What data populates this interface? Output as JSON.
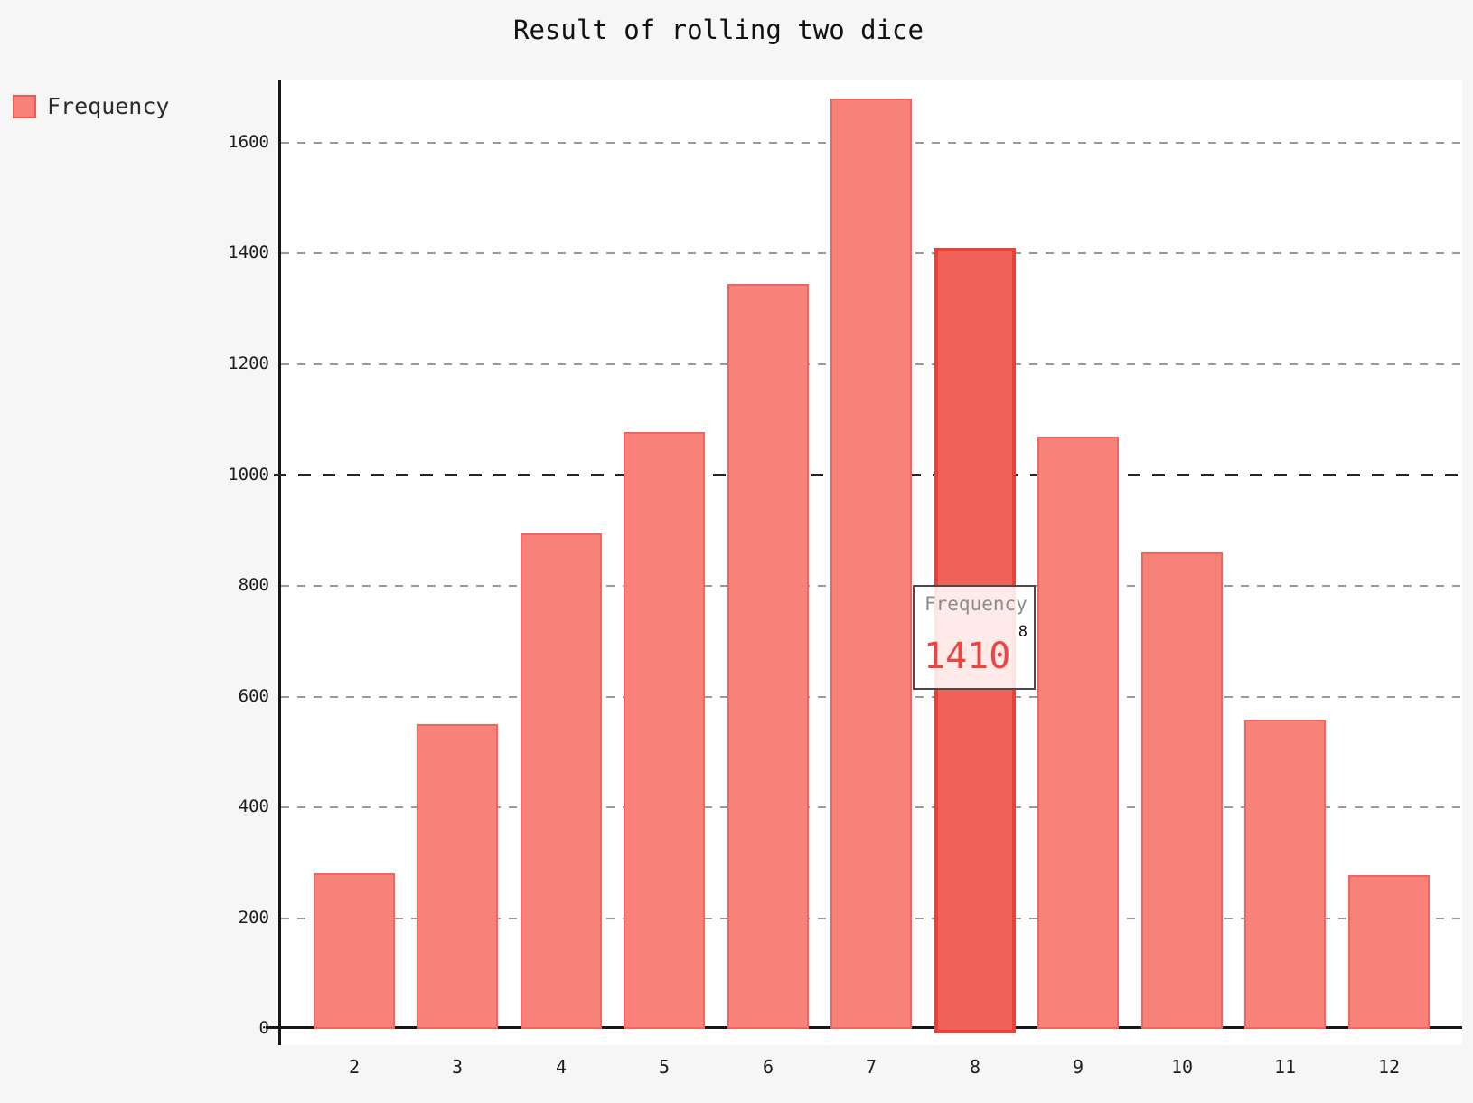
{
  "page": {
    "title": "Result of rolling two dice"
  },
  "legend": {
    "position": "top-left",
    "items": [
      {
        "label": "Frequency",
        "color": "#f7827a"
      }
    ]
  },
  "tooltip": {
    "series": "Frequency",
    "category": "8",
    "value": "1410"
  },
  "chart_data": {
    "type": "bar",
    "title": "Result of rolling two dice",
    "xlabel": "",
    "ylabel": "",
    "categories": [
      "2",
      "3",
      "4",
      "5",
      "6",
      "7",
      "8",
      "9",
      "10",
      "11",
      "12"
    ],
    "series": [
      {
        "name": "Frequency",
        "values": [
          280,
          550,
          895,
          1078,
          1345,
          1680,
          1410,
          1070,
          860,
          558,
          277
        ]
      }
    ],
    "ylim": [
      0,
      1600
    ],
    "yticks": [
      0,
      200,
      400,
      600,
      800,
      1000,
      1200,
      1400,
      1600
    ],
    "emphasized_gridline": 1000,
    "grid": "horizontal-dashed",
    "legend_position": "top-left",
    "highlighted_category": "8",
    "tooltip": {
      "series": "Frequency",
      "category": "8",
      "value": 1410
    }
  },
  "colors": {
    "bar_fill": "#f7827a",
    "bar_border": "#f4645c",
    "bar_highlight_fill": "#ef6159",
    "bar_highlight_border": "#e7423a",
    "grid": "#9a9a9a",
    "grid_emphasis": "#262626",
    "axis": "#161616",
    "tooltip_value": "#ee443f",
    "tooltip_label": "#8b8b8b",
    "page_background": "#f6f6f7",
    "plot_background": "#ffffff"
  }
}
